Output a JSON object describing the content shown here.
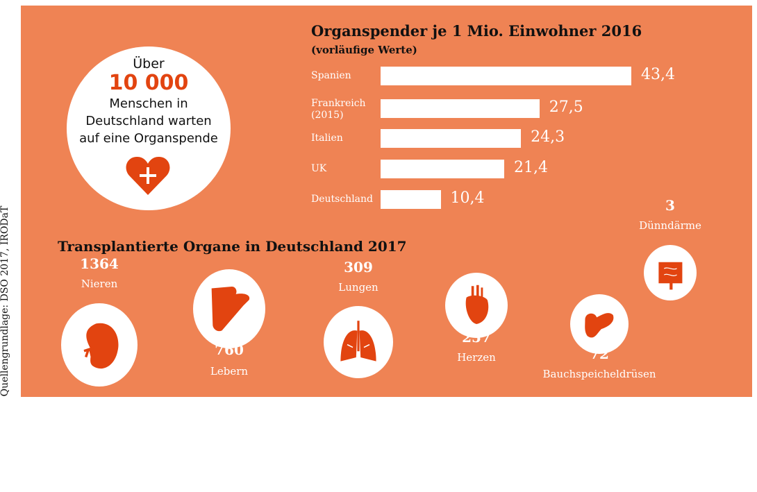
{
  "source": "Quellengrundlage: DSO 2017, IRODaT",
  "callout": {
    "line1": "Über",
    "number": "10 000",
    "line2": "Menschen in",
    "line3": "Deutschland warten",
    "line4": "auf eine Organspende"
  },
  "colors": {
    "background": "#ef8354",
    "accent": "#e24410",
    "bar": "#ffffff"
  },
  "chart_data": [
    {
      "type": "bar",
      "orientation": "horizontal",
      "title": "Organspender je 1 Mio. Einwohner 2016",
      "subtitle": "(vorläufige Werte)",
      "categories": [
        "Spanien",
        "Frankreich",
        "Italien",
        "UK",
        "Deutschland"
      ],
      "category_notes": [
        "",
        "(2015)",
        "",
        "",
        ""
      ],
      "values": [
        43.4,
        27.5,
        24.3,
        21.4,
        10.4
      ],
      "value_labels": [
        "43,4",
        "27,5",
        "24,3",
        "21,4",
        "10,4"
      ],
      "xlim": [
        0,
        43.4
      ]
    },
    {
      "type": "pictogram",
      "title": "Transplantierte Organe in Deutschland 2017",
      "categories": [
        "Nieren",
        "Lebern",
        "Lungen",
        "Herzen",
        "Bauchspeicheldrüsen",
        "Dünndärme"
      ],
      "values": [
        1364,
        760,
        309,
        257,
        72,
        3
      ],
      "value_labels": [
        "1364",
        "760",
        "309",
        "257",
        "72",
        "3"
      ],
      "icons": [
        "kidney-icon",
        "liver-icon",
        "lungs-icon",
        "heart-organ-icon",
        "pancreas-icon",
        "intestine-icon"
      ]
    }
  ]
}
